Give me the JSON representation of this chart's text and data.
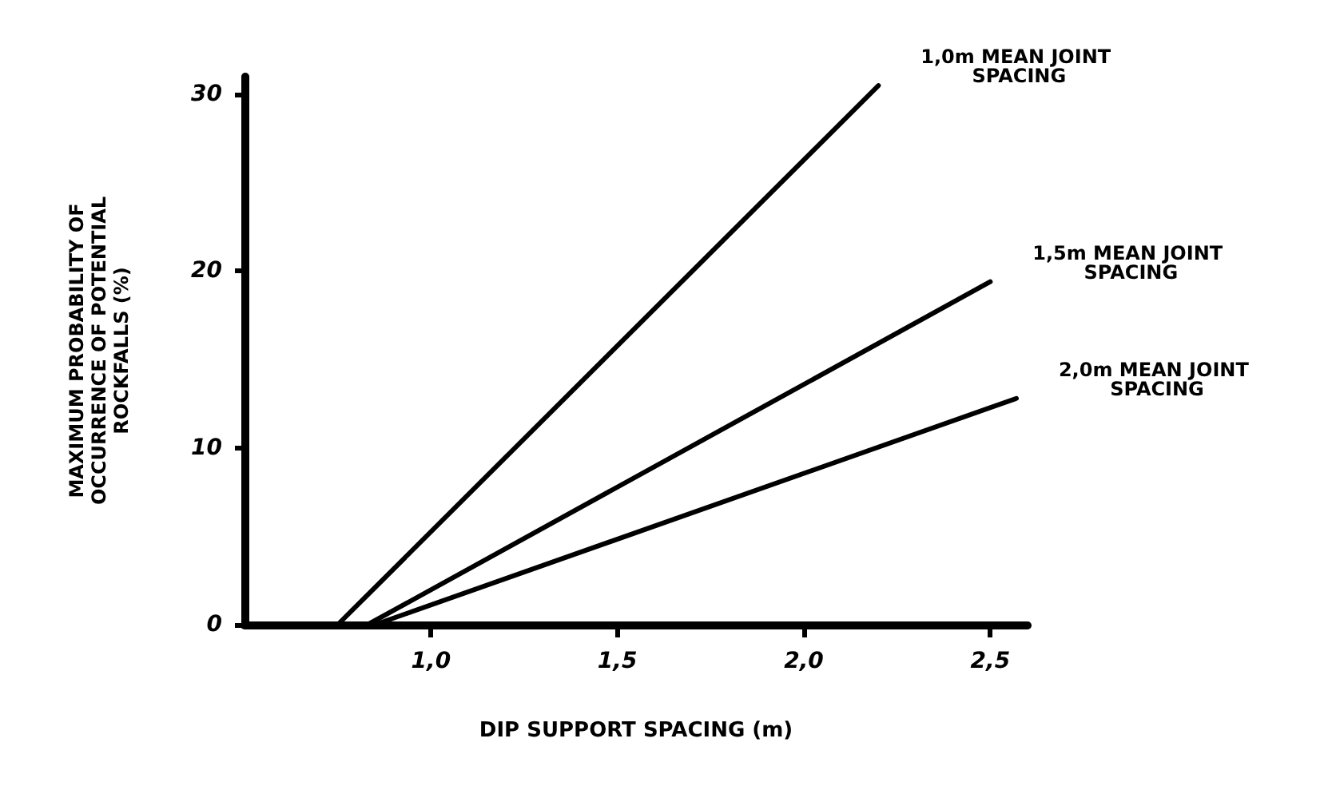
{
  "chart_data": {
    "type": "line",
    "xlabel": "DIP SUPPORT SPACING (m)",
    "ylabel": "MAXIMUM PROBABILITY OF OCCURRENCE OF POTENTIAL ROCKFALLS (%)",
    "xlim": [
      0.5,
      2.6
    ],
    "ylim": [
      0,
      31
    ],
    "xticks": [
      {
        "value": 1.0,
        "label": "1,0"
      },
      {
        "value": 1.5,
        "label": "1,5"
      },
      {
        "value": 2.0,
        "label": "2,0"
      },
      {
        "value": 2.5,
        "label": "2,5"
      }
    ],
    "yticks": [
      0,
      10,
      20,
      30
    ],
    "grid": false,
    "legend": false,
    "marker": "none",
    "line_style": "solid",
    "series": [
      {
        "name": "1,0m MEAN JOINT SPACING",
        "color": "#000000",
        "x": [
          0.75,
          2.2
        ],
        "values": [
          0,
          30.5
        ]
      },
      {
        "name": "1,5m MEAN JOINT SPACING",
        "color": "#000000",
        "x": [
          0.83,
          2.5
        ],
        "values": [
          0,
          19.4
        ]
      },
      {
        "name": "2,0m MEAN JOINT SPACING",
        "color": "#000000",
        "x": [
          0.85,
          2.57
        ],
        "values": [
          0,
          12.8
        ]
      }
    ]
  }
}
